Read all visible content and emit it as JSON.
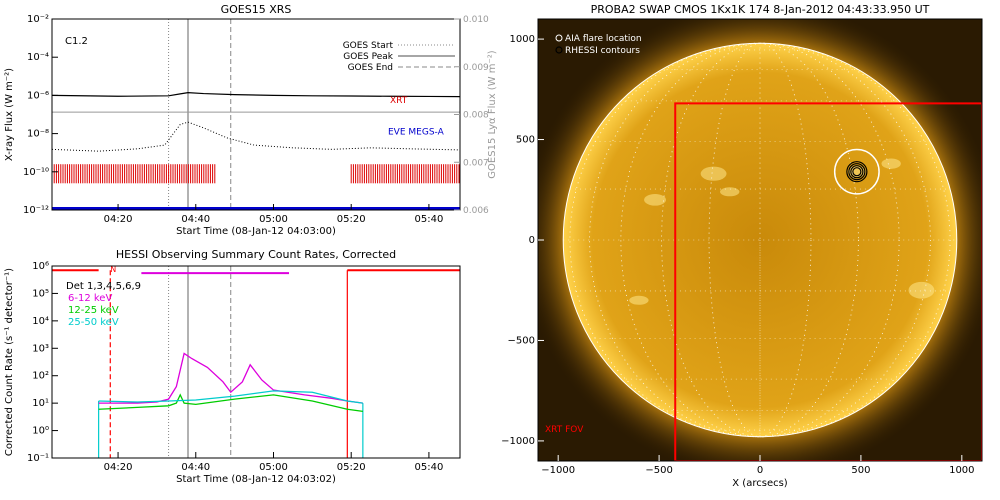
{
  "colors": {
    "xrt": "#dd0000",
    "eve": "#0000cc",
    "lya": "#999999",
    "hessi_6_12": "#dd00dd",
    "hessi_12_25": "#00cc00",
    "hessi_25_50": "#00cccc",
    "fov": "#ff0000",
    "sun_disk": "#d99a10",
    "sun_bg": "#2a1a02"
  },
  "chart_data": [
    {
      "type": "line",
      "title": "GOES15 XRS",
      "xlabel": "Start Time (08-Jan-12 04:03:00)",
      "ylabel": "X-ray Flux (W m⁻²)",
      "y2label": "GOES15 Lyα Flux (W m⁻²)",
      "x_range": [
        "04:03",
        "05:48"
      ],
      "x_ticks": [
        "04:20",
        "04:40",
        "05:00",
        "05:20",
        "05:40"
      ],
      "y_scale": "log",
      "ylim": [
        1e-12,
        0.01
      ],
      "y_ticks": [
        "10⁻²",
        "10⁻⁴",
        "10⁻⁶",
        "10⁻⁸",
        "10⁻¹⁰",
        "10⁻¹²"
      ],
      "y2lim": [
        0.006,
        0.01
      ],
      "y2_ticks": [
        "0.010",
        "0.009",
        "0.008",
        "0.007",
        "0.006"
      ],
      "annotation": "C1.2",
      "legend": [
        "GOES Start",
        "GOES Peak",
        "GOES End"
      ],
      "legend_position": "top-right",
      "vlines": {
        "start": "04:33",
        "peak": "04:38",
        "end": "04:49"
      },
      "series": [
        {
          "name": "XRT",
          "color": "#dd0000",
          "values": []
        },
        {
          "name": "EVE MEGS-A",
          "color": "#0000cc",
          "values": []
        }
      ],
      "xray_long": {
        "x": [
          "04:03",
          "04:20",
          "04:33",
          "04:36",
          "04:38",
          "04:42",
          "04:50",
          "05:00",
          "05:10",
          "05:20",
          "05:30",
          "05:40",
          "05:48"
        ],
        "y": [
          1e-06,
          9e-07,
          9.5e-07,
          1.2e-06,
          1.4e-06,
          1.25e-06,
          1.1e-06,
          1e-06,
          9.5e-07,
          9.3e-07,
          9e-07,
          8.8e-07,
          8.6e-07
        ]
      },
      "lyman_alpha": {
        "x": [
          "04:03",
          "05:48"
        ],
        "y": [
          0.00805,
          0.00805
        ]
      },
      "xray_short": {
        "x": [
          "04:03",
          "04:15",
          "04:25",
          "04:32",
          "04:36",
          "04:38",
          "04:42",
          "04:48",
          "04:55",
          "05:05",
          "05:15",
          "05:25",
          "05:35",
          "05:48"
        ],
        "y": [
          1.5e-09,
          1.2e-09,
          1.6e-09,
          2.5e-09,
          3e-08,
          4e-08,
          2e-08,
          6e-09,
          2.5e-09,
          1.8e-09,
          1.5e-09,
          1.8e-09,
          1.6e-09,
          1.4e-09
        ]
      },
      "rhessi_flags": [
        [
          "04:03",
          "04:45"
        ],
        [
          "05:20",
          "05:48"
        ]
      ],
      "baseline": {
        "y": 1.2e-12
      }
    },
    {
      "type": "line",
      "title": "HESSI Observing Summary Count Rates, Corrected",
      "xlabel": "Start Time (08-Jan-12 04:03:02)",
      "ylabel": "Corrected Count Rate (s⁻¹ detector⁻¹)",
      "x_range": [
        "04:03",
        "05:48"
      ],
      "x_ticks": [
        "04:20",
        "04:40",
        "05:00",
        "05:20",
        "05:40"
      ],
      "y_scale": "log",
      "ylim": [
        0.1,
        1000000
      ],
      "y_ticks": [
        "10⁶",
        "10⁵",
        "10⁴",
        "10³",
        "10²",
        "10¹",
        "10⁰",
        "10⁻¹"
      ],
      "legend_title": "Det 1,3,4,5,6,9",
      "legend_position": "top-left",
      "flag_label": "N",
      "vlines": {
        "start": "04:33",
        "peak": "04:38",
        "end": "04:49",
        "red_dashed": "04:18",
        "red_solid": "05:19"
      },
      "series": [
        {
          "name": "6-12 keV",
          "color": "#dd00dd",
          "x": [
            "04:15",
            "04:25",
            "04:30",
            "04:33",
            "04:35",
            "04:37",
            "04:39",
            "04:43",
            "04:47",
            "04:49",
            "04:52",
            "04:54",
            "04:57",
            "05:00",
            "05:08",
            "05:15",
            "05:19",
            "05:23"
          ],
          "values": [
            10,
            10,
            11,
            14,
            40,
            650,
            420,
            200,
            60,
            25,
            60,
            250,
            70,
            30,
            20,
            15,
            12,
            10
          ]
        },
        {
          "name": "12-25 keV",
          "color": "#00cc00",
          "x": [
            "04:15",
            "04:25",
            "04:33",
            "04:35",
            "04:36",
            "04:37",
            "04:40",
            "04:50",
            "05:00",
            "05:10",
            "05:19",
            "05:23"
          ],
          "values": [
            6,
            7,
            8,
            10,
            20,
            10,
            9,
            14,
            20,
            12,
            6,
            5
          ]
        },
        {
          "name": "25-50 keV",
          "color": "#00cccc",
          "x": [
            "04:15",
            "04:25",
            "04:33",
            "04:40",
            "04:50",
            "05:00",
            "05:10",
            "05:19",
            "05:23"
          ],
          "values": [
            12,
            11,
            12,
            13,
            18,
            28,
            25,
            12,
            10
          ]
        }
      ],
      "magenta_bar": {
        "x": [
          "04:26",
          "05:04"
        ],
        "y": 550000
      },
      "top_flags": [
        [
          "04:03",
          "04:15"
        ],
        [
          "05:19",
          "05:48"
        ]
      ]
    },
    {
      "type": "image",
      "title": "PROBA2 SWAP CMOS 1Kx1K 174  8-Jan-2012 04:43:33.950 UT",
      "xlabel": "X (arcsecs)",
      "x_ticks": [
        "−1000",
        "−500",
        "0",
        "500",
        "1000"
      ],
      "y_ticks": [
        "1000",
        "500",
        "0",
        "−500",
        "−1000"
      ],
      "xlim": [
        -1100,
        1100
      ],
      "ylim": [
        -1100,
        1100
      ],
      "legend": [
        "AIA flare location",
        "RHESSI contours"
      ],
      "legend_position": "top-left",
      "fov_label": "XRT FOV",
      "xrt_fov": {
        "x": [
          -420,
          1100
        ],
        "y": [
          -1100,
          680
        ]
      },
      "aia_flare_location": {
        "x": 480,
        "y": 340,
        "radius": 110
      },
      "rhessi_contours": {
        "x": 480,
        "y": 340
      },
      "sun_radius": 975
    }
  ]
}
